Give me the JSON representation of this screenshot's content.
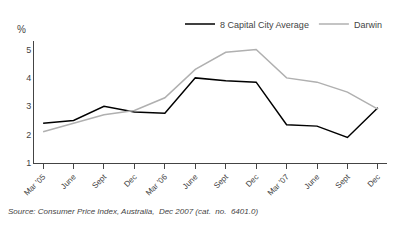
{
  "chart_data": {
    "type": "line",
    "y_label": "%",
    "categories": [
      "Mar '05",
      "June",
      "Sept",
      "Dec",
      "Mar '06",
      "June",
      "Sept",
      "Dec",
      "Mar '07",
      "June",
      "Sept",
      "Dec"
    ],
    "series": [
      {
        "name": "8 Capital City Average",
        "color": "#000000",
        "values": [
          2.4,
          2.5,
          3.0,
          2.8,
          2.75,
          4.0,
          3.9,
          3.85,
          2.35,
          2.3,
          1.9,
          2.95
        ]
      },
      {
        "name": "Darwin",
        "color": "#b0b0b0",
        "values": [
          2.1,
          2.4,
          2.7,
          2.85,
          3.3,
          4.3,
          4.9,
          5.0,
          4.0,
          3.85,
          3.5,
          2.9
        ]
      }
    ],
    "ylim": [
      1,
      5.3
    ],
    "yticks": [
      1,
      2,
      3,
      4,
      5
    ],
    "grid": false,
    "legend": "upper right",
    "annotations": [
      "Source: Consumer Price Index, Australia,  Dec 2007 (cat.  no.  6401.0)"
    ]
  }
}
